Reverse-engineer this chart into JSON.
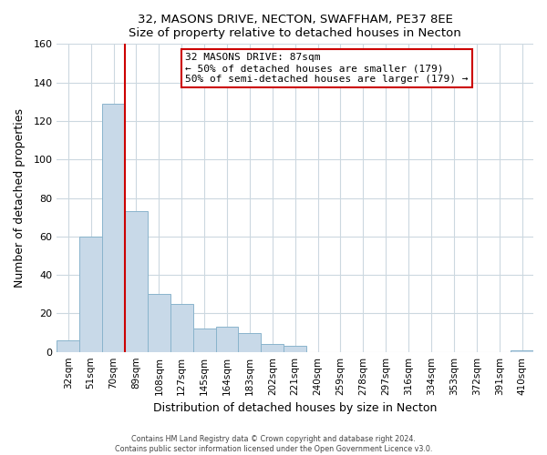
{
  "title1": "32, MASONS DRIVE, NECTON, SWAFFHAM, PE37 8EE",
  "title2": "Size of property relative to detached houses in Necton",
  "xlabel": "Distribution of detached houses by size in Necton",
  "ylabel": "Number of detached properties",
  "bar_labels": [
    "32sqm",
    "51sqm",
    "70sqm",
    "89sqm",
    "108sqm",
    "127sqm",
    "145sqm",
    "164sqm",
    "183sqm",
    "202sqm",
    "221sqm",
    "240sqm",
    "259sqm",
    "278sqm",
    "297sqm",
    "316sqm",
    "334sqm",
    "353sqm",
    "372sqm",
    "391sqm",
    "410sqm"
  ],
  "bar_heights": [
    6,
    60,
    129,
    73,
    30,
    25,
    12,
    13,
    10,
    4,
    3,
    0,
    0,
    0,
    0,
    0,
    0,
    0,
    0,
    0,
    1
  ],
  "bar_color": "#c8d9e8",
  "bar_edge_color": "#8ab4cc",
  "vline_color": "#cc0000",
  "annotation_text": "32 MASONS DRIVE: 87sqm\n← 50% of detached houses are smaller (179)\n50% of semi-detached houses are larger (179) →",
  "annotation_box_color": "#ffffff",
  "annotation_box_edge": "#cc0000",
  "ylim": [
    0,
    160
  ],
  "yticks": [
    0,
    20,
    40,
    60,
    80,
    100,
    120,
    140,
    160
  ],
  "footer1": "Contains HM Land Registry data © Crown copyright and database right 2024.",
  "footer2": "Contains public sector information licensed under the Open Government Licence v3.0.",
  "bg_color": "#ffffff",
  "grid_color": "#ccd8e0"
}
